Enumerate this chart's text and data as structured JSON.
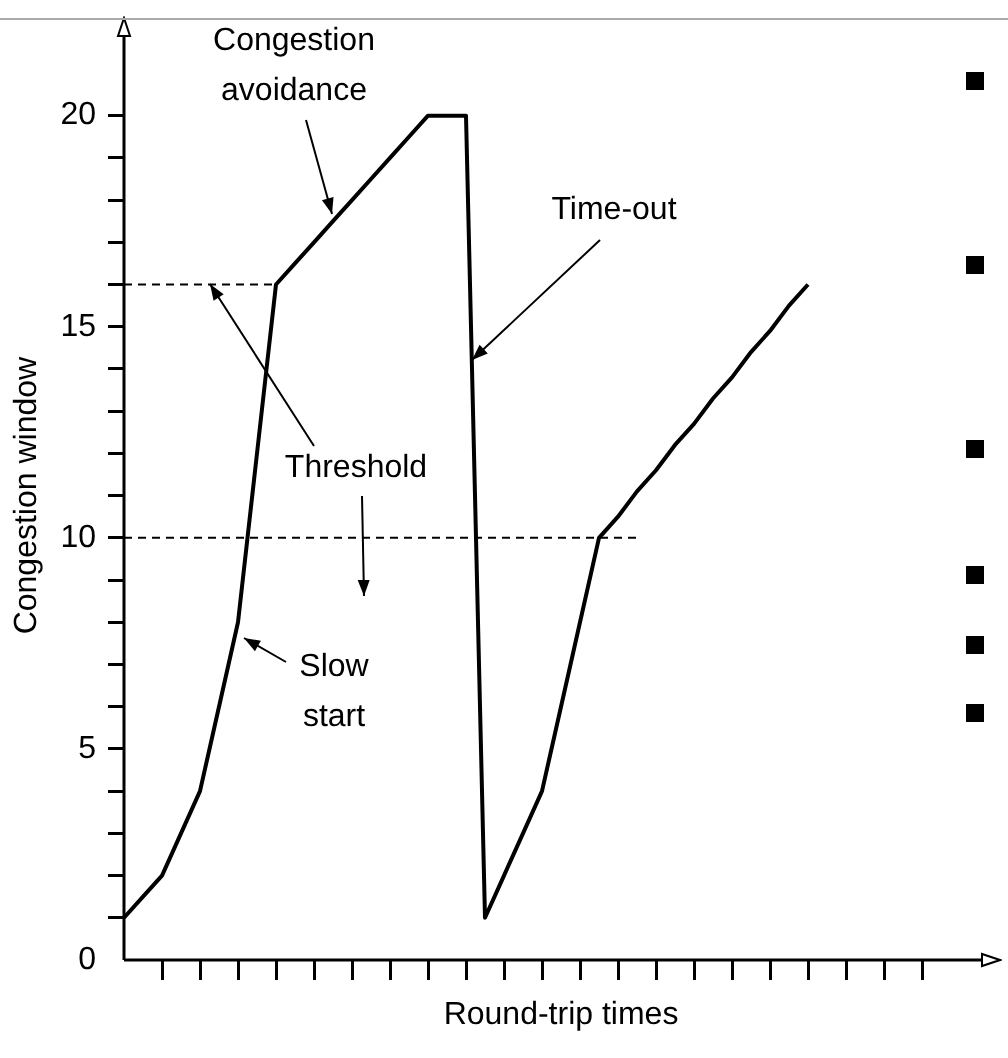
{
  "chart_data": {
    "type": "line",
    "xlabel": "Round-trip times",
    "ylabel": "Congestion window",
    "categories": [
      null,
      null,
      null,
      null,
      null,
      null,
      null,
      null,
      null,
      null,
      null,
      null,
      null,
      null,
      null,
      null,
      null,
      null,
      null,
      null,
      null,
      null,
      null,
      null,
      null,
      null,
      null,
      null,
      null,
      null,
      null,
      null,
      null,
      null,
      null,
      null,
      null,
      null,
      null,
      null,
      null,
      null,
      null,
      null,
      null,
      null,
      null
    ],
    "series": [
      {
        "color": "#000000",
        "values": [
          1,
          1.5,
          2,
          3,
          4,
          6,
          8,
          12,
          16,
          16.5,
          17,
          17.5,
          18,
          18.5,
          19,
          19.5,
          20,
          20,
          20,
          1,
          2,
          3,
          4,
          6,
          8,
          10,
          10.5,
          11.1,
          11.6,
          12.2,
          12.7,
          13.3,
          13.8,
          14.4,
          14.9,
          15.5,
          16,
          null,
          null,
          null,
          null,
          null,
          null,
          null,
          null,
          null,
          null
        ]
      },
      {
        "color": "#000000",
        "line_style": "dashed",
        "values": [
          16,
          16,
          16,
          16,
          16,
          16,
          16,
          16,
          16,
          null,
          null,
          null,
          null,
          null,
          null,
          null,
          null,
          null,
          null,
          null,
          null,
          null,
          null,
          null,
          null,
          null,
          null,
          null,
          null,
          null,
          null,
          null,
          null,
          null,
          null,
          null,
          null,
          null,
          null,
          null,
          null,
          null,
          null,
          null,
          null,
          null,
          null
        ]
      },
      {
        "color": "#000000",
        "line_style": "dashed",
        "values": [
          10,
          10,
          10,
          10,
          10,
          10,
          10,
          10,
          10,
          10,
          10,
          10,
          10,
          10,
          10,
          10,
          10,
          10,
          10,
          10,
          10,
          10,
          10,
          10,
          10,
          10,
          10,
          10,
          null,
          null,
          null,
          null,
          null,
          null,
          null,
          null,
          null,
          null,
          null,
          null,
          null,
          null,
          null,
          null,
          null,
          null,
          null
        ]
      }
    ],
    "ylim": [
      0,
      22
    ],
    "yticks": [
      0,
      {
        "value": 1,
        "label": null
      },
      {
        "value": 2,
        "label": null
      },
      {
        "value": 3,
        "label": null
      },
      {
        "value": 4,
        "label": null
      },
      5,
      {
        "value": 6,
        "label": null
      },
      {
        "value": 7,
        "label": null
      },
      {
        "value": 8,
        "label": null
      },
      {
        "value": 9,
        "label": null
      },
      10,
      {
        "value": 11,
        "label": null
      },
      {
        "value": 12,
        "label": null
      },
      {
        "value": 13,
        "label": null
      },
      {
        "value": 14,
        "label": null
      },
      15,
      {
        "value": 16,
        "label": null
      },
      {
        "value": 17,
        "label": null
      },
      {
        "value": 18,
        "label": null
      },
      {
        "value": 19,
        "label": null
      },
      20
    ],
    "marker": "none",
    "line_style": "solid",
    "grid": false,
    "legend": false,
    "annotations": [
      "Congestion\navoidance",
      "Time-out",
      "Threshold",
      "Slow\nstart"
    ]
  }
}
